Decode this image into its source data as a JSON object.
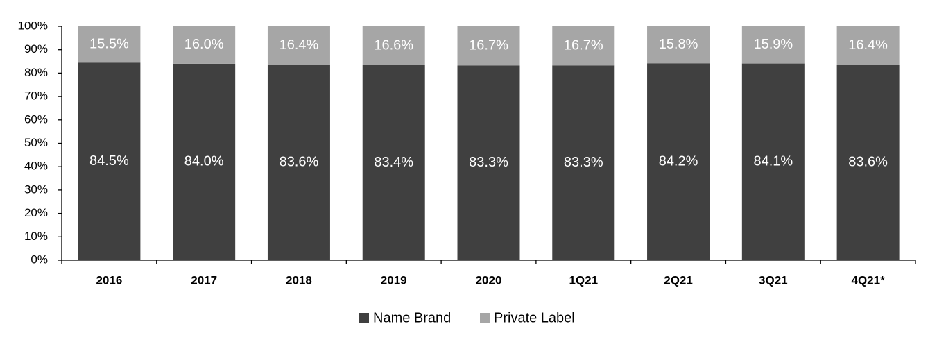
{
  "chart_data": {
    "type": "stacked_bar",
    "categories": [
      "2016",
      "2017",
      "2018",
      "2019",
      "2020",
      "1Q21",
      "2Q21",
      "3Q21",
      "4Q21*"
    ],
    "series": [
      {
        "name": "Name Brand",
        "color": "#404040",
        "values": [
          84.5,
          84.0,
          83.6,
          83.4,
          83.3,
          83.3,
          84.2,
          84.1,
          83.6
        ],
        "value_labels": [
          "84.5%",
          "84.0%",
          "83.6%",
          "83.4%",
          "83.3%",
          "83.3%",
          "84.2%",
          "84.1%",
          "83.6%"
        ]
      },
      {
        "name": "Private Label",
        "color": "#a6a6a6",
        "values": [
          15.5,
          16.0,
          16.4,
          16.6,
          16.7,
          16.7,
          15.8,
          15.9,
          16.4
        ],
        "value_labels": [
          "15.5%",
          "16.0%",
          "16.4%",
          "16.6%",
          "16.7%",
          "16.7%",
          "15.8%",
          "15.9%",
          "16.4%"
        ]
      }
    ],
    "ylim": [
      0,
      100
    ],
    "yticks": [
      {
        "value": 0,
        "label": "0%"
      },
      {
        "value": 10,
        "label": "10%"
      },
      {
        "value": 20,
        "label": "20%"
      },
      {
        "value": 30,
        "label": "30%"
      },
      {
        "value": 40,
        "label": "40%"
      },
      {
        "value": 50,
        "label": "50%"
      },
      {
        "value": 60,
        "label": "60%"
      },
      {
        "value": 70,
        "label": "70%"
      },
      {
        "value": 80,
        "label": "80%"
      },
      {
        "value": 90,
        "label": "90%"
      },
      {
        "value": 100,
        "label": "100%"
      }
    ],
    "legend": "bottom"
  }
}
